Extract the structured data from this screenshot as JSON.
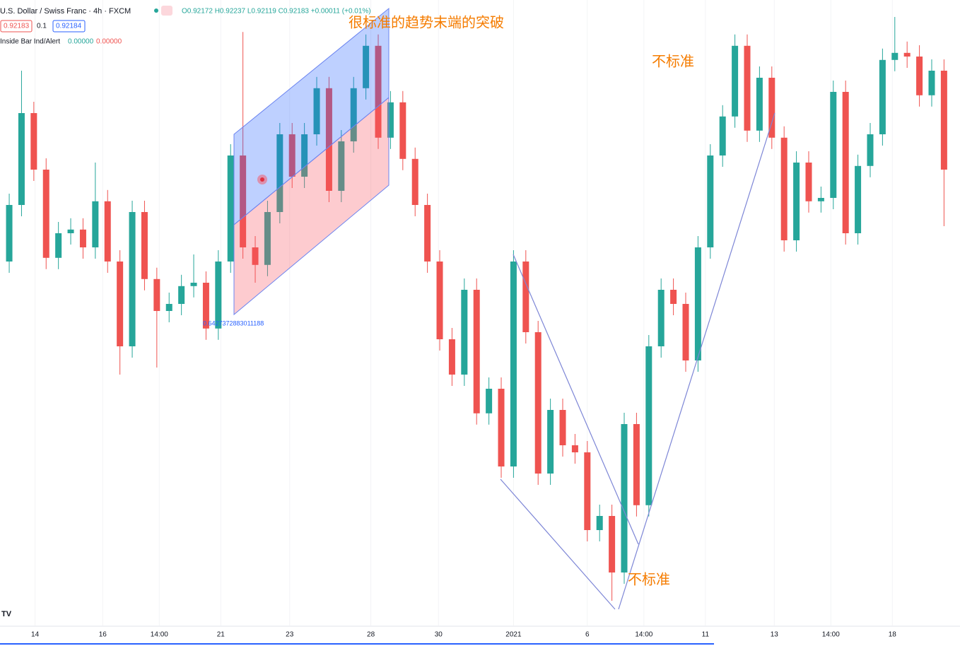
{
  "header": {
    "symbol": "U.S. Dollar / Swiss Franc · 4h · FXCM",
    "ohlc": "O0.92172 H0.92237 L0.92119 C0.92183 +0.00011 (+0.01%)",
    "sell": "0.92183",
    "spread": "0.1",
    "buy": "0.92184",
    "indicator": "Inside Bar Ind/Alert",
    "ind_val1": "0.00000",
    "ind_val2": "0.00000"
  },
  "annotations": {
    "top": "很标准的趋势末端的突破",
    "right": "不标准",
    "bottom": "不标准",
    "level": "0.6427372883011188"
  },
  "chart_data": {
    "type": "candlestick",
    "up_color": "#26a69a",
    "down_color": "#ef5350",
    "ylim": [
      0.874,
      0.8965
    ],
    "xlim": [
      -0.75,
      77.3
    ],
    "xticks": [
      {
        "value": 2.1,
        "label": "14"
      },
      {
        "value": 7.6,
        "label": "16"
      },
      {
        "value": 12.2,
        "label": "14:00"
      },
      {
        "value": 17.2,
        "label": "21"
      },
      {
        "value": 22.8,
        "label": "23"
      },
      {
        "value": 29.4,
        "label": "28"
      },
      {
        "value": 34.9,
        "label": "30"
      },
      {
        "value": 41.0,
        "label": "2021"
      },
      {
        "value": 47.0,
        "label": "6"
      },
      {
        "value": 51.6,
        "label": "14:00"
      },
      {
        "value": 56.6,
        "label": "11"
      },
      {
        "value": 62.2,
        "label": "13"
      },
      {
        "value": 66.8,
        "label": "14:00"
      },
      {
        "value": 71.8,
        "label": "18"
      }
    ],
    "open": [
      0.88725,
      0.88925,
      0.8925,
      0.8905,
      0.88738,
      0.88825,
      0.88838,
      0.88775,
      0.88938,
      0.88725,
      0.88425,
      0.889,
      0.88663,
      0.8855,
      0.88575,
      0.88638,
      0.8865,
      0.88488,
      0.88725,
      0.891,
      0.88775,
      0.88713,
      0.889,
      0.89175,
      0.89025,
      0.89175,
      0.89338,
      0.88975,
      0.8915,
      0.89338,
      0.89488,
      0.89163,
      0.89288,
      0.89088,
      0.88925,
      0.88725,
      0.8845,
      0.88325,
      0.88625,
      0.88188,
      0.88275,
      0.88,
      0.88725,
      0.88475,
      0.87975,
      0.882,
      0.88075,
      0.8805,
      0.87775,
      0.87825,
      0.87625,
      0.8815,
      0.87863,
      0.88425,
      0.88625,
      0.88575,
      0.88375,
      0.88775,
      0.891,
      0.89238,
      0.89488,
      0.89188,
      0.89375,
      0.89163,
      0.888,
      0.89075,
      0.88938,
      0.8895,
      0.89325,
      0.88825,
      0.89063,
      0.89175,
      0.89438,
      0.89463,
      0.8945,
      0.89313,
      0.894
    ],
    "high": [
      0.88965,
      0.894,
      0.8929,
      0.8909,
      0.88865,
      0.88878,
      0.88878,
      0.89075,
      0.88978,
      0.88765,
      0.8894,
      0.8894,
      0.88703,
      0.88615,
      0.88678,
      0.8875,
      0.8869,
      0.88765,
      0.8914,
      0.89537,
      0.88815,
      0.8894,
      0.89215,
      0.89215,
      0.89215,
      0.89378,
      0.89378,
      0.8919,
      0.89378,
      0.89528,
      0.89528,
      0.89328,
      0.89328,
      0.89128,
      0.88965,
      0.88765,
      0.8849,
      0.88665,
      0.88665,
      0.88315,
      0.88315,
      0.88765,
      0.88765,
      0.88515,
      0.8824,
      0.8824,
      0.88115,
      0.8809,
      0.87865,
      0.87865,
      0.8819,
      0.8819,
      0.88465,
      0.88665,
      0.88665,
      0.88615,
      0.88815,
      0.8914,
      0.89278,
      0.89528,
      0.89528,
      0.89415,
      0.89415,
      0.89203,
      0.89115,
      0.89115,
      0.8899,
      0.89365,
      0.89365,
      0.89103,
      0.89215,
      0.89478,
      0.8959,
      0.89503,
      0.8949,
      0.8944,
      0.8944
    ],
    "low": [
      0.88685,
      0.88885,
      0.8901,
      0.88698,
      0.88698,
      0.88785,
      0.88735,
      0.88735,
      0.88685,
      0.88325,
      0.88385,
      0.88623,
      0.8835,
      0.8851,
      0.88535,
      0.88598,
      0.88448,
      0.88448,
      0.88685,
      0.88735,
      0.8865,
      0.88673,
      0.8886,
      0.88985,
      0.88985,
      0.89135,
      0.88935,
      0.88935,
      0.8911,
      0.89298,
      0.89123,
      0.89123,
      0.89048,
      0.88885,
      0.88685,
      0.8841,
      0.88285,
      0.88285,
      0.88148,
      0.88148,
      0.8796,
      0.8796,
      0.88435,
      0.87935,
      0.87935,
      0.88035,
      0.8801,
      0.87735,
      0.87735,
      0.87525,
      0.87585,
      0.87823,
      0.87823,
      0.88385,
      0.88535,
      0.88335,
      0.88335,
      0.88735,
      0.8906,
      0.89198,
      0.89148,
      0.89148,
      0.89123,
      0.8876,
      0.8876,
      0.88898,
      0.88898,
      0.8891,
      0.88785,
      0.88785,
      0.89023,
      0.89135,
      0.89398,
      0.8941,
      0.89273,
      0.89273,
      0.8885
    ],
    "close": [
      0.88925,
      0.8925,
      0.8905,
      0.88738,
      0.88825,
      0.88838,
      0.88775,
      0.88938,
      0.88725,
      0.88425,
      0.889,
      0.88663,
      0.8855,
      0.88575,
      0.88638,
      0.8865,
      0.88488,
      0.88725,
      0.891,
      0.88775,
      0.88713,
      0.889,
      0.89175,
      0.89025,
      0.89175,
      0.89338,
      0.88975,
      0.8915,
      0.89338,
      0.89488,
      0.89163,
      0.89288,
      0.89088,
      0.88925,
      0.88725,
      0.8845,
      0.88325,
      0.88625,
      0.88188,
      0.88275,
      0.88,
      0.88725,
      0.88475,
      0.87975,
      0.882,
      0.88075,
      0.8805,
      0.87775,
      0.87825,
      0.87625,
      0.8815,
      0.87863,
      0.88425,
      0.88625,
      0.88575,
      0.88375,
      0.88775,
      0.891,
      0.89238,
      0.89488,
      0.89188,
      0.89375,
      0.89163,
      0.888,
      0.89075,
      0.88938,
      0.8895,
      0.89325,
      0.88825,
      0.89063,
      0.89175,
      0.89438,
      0.89463,
      0.8945,
      0.89313,
      0.894,
      0.8905
    ]
  }
}
